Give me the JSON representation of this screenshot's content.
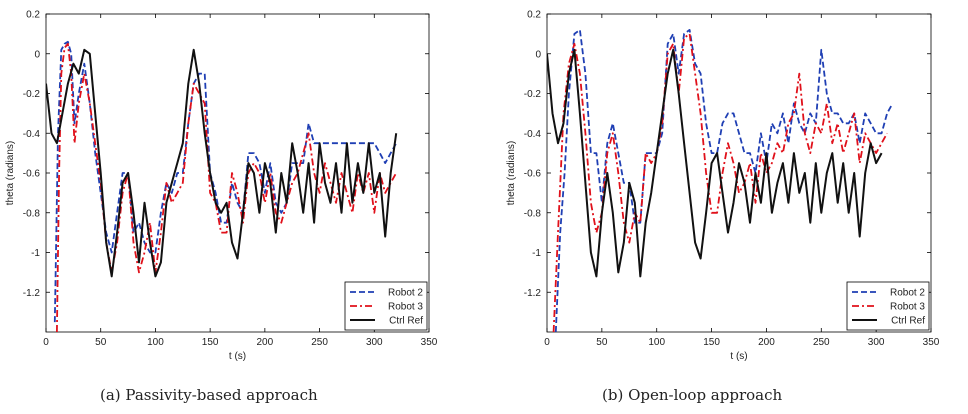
{
  "chart_data": [
    {
      "type": "line",
      "caption": "(a) Passivity-based approach",
      "xlabel": "t (s)",
      "ylabel": "theta (radians)",
      "xlim": [
        0,
        350
      ],
      "ylim": [
        -1.4,
        0.2
      ],
      "xticks": [
        0,
        50,
        100,
        150,
        200,
        250,
        300,
        350
      ],
      "yticks": [
        0.2,
        0,
        -0.2,
        -0.4,
        -0.6,
        -0.8,
        -1,
        -1.2
      ],
      "legend_position": "bottom-right",
      "series": [
        {
          "name": "Robot 2",
          "style": "dashed",
          "color": "#1f3fb4",
          "x": [
            8,
            11,
            14,
            17,
            20,
            23,
            26,
            30,
            35,
            40,
            45,
            50,
            55,
            60,
            65,
            70,
            75,
            80,
            85,
            90,
            95,
            100,
            105,
            110,
            115,
            120,
            125,
            130,
            135,
            140,
            145,
            150,
            155,
            160,
            165,
            170,
            175,
            180,
            185,
            190,
            195,
            200,
            205,
            210,
            215,
            220,
            225,
            230,
            235,
            240,
            245,
            250,
            255,
            260,
            270,
            280,
            290,
            300,
            305,
            310,
            315,
            320
          ],
          "y": [
            -1.35,
            -0.4,
            0.02,
            0.05,
            0.06,
            0.0,
            -0.35,
            -0.2,
            -0.05,
            -0.25,
            -0.5,
            -0.7,
            -0.9,
            -1.0,
            -0.8,
            -0.6,
            -0.6,
            -0.9,
            -0.85,
            -0.95,
            -1.0,
            -1.0,
            -0.8,
            -0.65,
            -0.7,
            -0.6,
            -0.6,
            -0.35,
            -0.15,
            -0.1,
            -0.1,
            -0.6,
            -0.7,
            -0.85,
            -0.85,
            -0.65,
            -0.75,
            -0.8,
            -0.5,
            -0.5,
            -0.55,
            -0.7,
            -0.55,
            -0.75,
            -0.8,
            -0.75,
            -0.55,
            -0.55,
            -0.55,
            -0.35,
            -0.45,
            -0.45,
            -0.45,
            -0.45,
            -0.45,
            -0.45,
            -0.45,
            -0.45,
            -0.5,
            -0.55,
            -0.5,
            -0.45
          ]
        },
        {
          "name": "Robot 3",
          "style": "dashdot",
          "color": "#e0101a",
          "x": [
            10,
            12,
            14,
            17,
            20,
            23,
            26,
            30,
            35,
            40,
            45,
            50,
            55,
            60,
            65,
            70,
            75,
            80,
            85,
            90,
            95,
            100,
            105,
            110,
            115,
            120,
            125,
            130,
            135,
            140,
            145,
            150,
            155,
            160,
            165,
            170,
            175,
            180,
            185,
            190,
            195,
            200,
            205,
            210,
            215,
            220,
            225,
            230,
            235,
            240,
            245,
            250,
            255,
            260,
            265,
            270,
            275,
            280,
            285,
            290,
            295,
            300,
            305,
            310,
            315,
            320
          ],
          "y": [
            -1.4,
            -0.6,
            -0.1,
            0.03,
            0.05,
            -0.1,
            -0.45,
            -0.25,
            -0.1,
            -0.25,
            -0.45,
            -0.65,
            -0.95,
            -1.1,
            -0.95,
            -0.7,
            -0.6,
            -0.95,
            -1.1,
            -1.0,
            -0.85,
            -1.1,
            -0.9,
            -0.65,
            -0.75,
            -0.7,
            -0.65,
            -0.35,
            -0.15,
            -0.2,
            -0.25,
            -0.7,
            -0.75,
            -0.9,
            -0.9,
            -0.6,
            -0.7,
            -0.85,
            -0.6,
            -0.55,
            -0.6,
            -0.75,
            -0.6,
            -0.8,
            -0.85,
            -0.75,
            -0.65,
            -0.6,
            -0.5,
            -0.4,
            -0.6,
            -0.7,
            -0.55,
            -0.65,
            -0.75,
            -0.6,
            -0.7,
            -0.8,
            -0.6,
            -0.7,
            -0.6,
            -0.8,
            -0.6,
            -0.7,
            -0.65,
            -0.6
          ]
        },
        {
          "name": "Ctrl Ref",
          "style": "solid",
          "color": "#111111",
          "x": [
            0,
            5,
            10,
            15,
            20,
            25,
            30,
            35,
            40,
            45,
            50,
            55,
            60,
            65,
            70,
            75,
            80,
            85,
            90,
            95,
            100,
            105,
            110,
            115,
            120,
            125,
            130,
            135,
            140,
            145,
            150,
            155,
            160,
            165,
            170,
            175,
            180,
            185,
            190,
            195,
            200,
            205,
            210,
            215,
            220,
            225,
            230,
            235,
            240,
            245,
            250,
            255,
            260,
            265,
            270,
            275,
            280,
            285,
            290,
            295,
            300,
            305,
            310,
            315,
            320
          ],
          "y": [
            -0.15,
            -0.4,
            -0.45,
            -0.3,
            -0.15,
            -0.05,
            -0.1,
            0.02,
            0.0,
            -0.3,
            -0.6,
            -0.95,
            -1.12,
            -0.9,
            -0.65,
            -0.6,
            -0.8,
            -1.05,
            -0.75,
            -0.95,
            -1.12,
            -1.05,
            -0.75,
            -0.65,
            -0.55,
            -0.45,
            -0.15,
            0.02,
            -0.15,
            -0.4,
            -0.6,
            -0.75,
            -0.8,
            -0.75,
            -0.95,
            -1.03,
            -0.8,
            -0.55,
            -0.6,
            -0.8,
            -0.55,
            -0.65,
            -0.9,
            -0.6,
            -0.75,
            -0.45,
            -0.6,
            -0.8,
            -0.55,
            -0.85,
            -0.45,
            -0.65,
            -0.75,
            -0.55,
            -0.8,
            -0.45,
            -0.75,
            -0.55,
            -0.7,
            -0.45,
            -0.7,
            -0.6,
            -0.92,
            -0.6,
            -0.4
          ]
        }
      ]
    },
    {
      "type": "line",
      "caption": "(b) Open-loop approach",
      "xlabel": "t (s)",
      "ylabel": "theta (radians)",
      "xlim": [
        0,
        350
      ],
      "ylim": [
        -1.4,
        0.2
      ],
      "xticks": [
        0,
        50,
        100,
        150,
        200,
        250,
        300,
        350
      ],
      "yticks": [
        0.2,
        0,
        -0.2,
        -0.4,
        -0.6,
        -0.8,
        -1,
        -1.2
      ],
      "legend_position": "bottom-right",
      "series": [
        {
          "name": "Robot 2",
          "style": "dashed",
          "color": "#1f3fb4",
          "x": [
            8,
            12,
            16,
            20,
            25,
            30,
            35,
            40,
            45,
            50,
            55,
            60,
            65,
            70,
            75,
            80,
            85,
            90,
            95,
            100,
            105,
            110,
            115,
            120,
            125,
            130,
            135,
            140,
            145,
            150,
            155,
            160,
            165,
            170,
            175,
            180,
            185,
            190,
            195,
            200,
            205,
            210,
            215,
            220,
            225,
            230,
            235,
            240,
            245,
            250,
            255,
            260,
            265,
            270,
            275,
            280,
            285,
            290,
            295,
            300,
            305,
            310,
            315
          ],
          "y": [
            -1.4,
            -0.9,
            -0.6,
            -0.2,
            0.1,
            0.12,
            -0.1,
            -0.5,
            -0.5,
            -0.75,
            -0.45,
            -0.35,
            -0.5,
            -0.65,
            -0.65,
            -0.85,
            -0.85,
            -0.5,
            -0.5,
            -0.5,
            -0.4,
            0.05,
            0.1,
            -0.1,
            0.1,
            0.12,
            -0.05,
            -0.1,
            -0.35,
            -0.5,
            -0.5,
            -0.35,
            -0.3,
            -0.3,
            -0.4,
            -0.5,
            -0.5,
            -0.6,
            -0.4,
            -0.55,
            -0.35,
            -0.4,
            -0.3,
            -0.45,
            -0.25,
            -0.35,
            -0.4,
            -0.3,
            -0.35,
            0.02,
            -0.2,
            -0.3,
            -0.3,
            -0.35,
            -0.35,
            -0.3,
            -0.45,
            -0.3,
            -0.35,
            -0.4,
            -0.4,
            -0.3,
            -0.25
          ]
        },
        {
          "name": "Robot 3",
          "style": "dashdot",
          "color": "#e0101a",
          "x": [
            6,
            10,
            15,
            20,
            25,
            30,
            35,
            40,
            45,
            50,
            55,
            60,
            65,
            70,
            75,
            80,
            85,
            90,
            95,
            100,
            105,
            110,
            115,
            120,
            125,
            130,
            135,
            140,
            145,
            150,
            155,
            160,
            165,
            170,
            175,
            180,
            185,
            190,
            195,
            200,
            205,
            210,
            215,
            220,
            225,
            230,
            235,
            240,
            245,
            250,
            255,
            260,
            265,
            270,
            275,
            280,
            285,
            290,
            295,
            300,
            305,
            310
          ],
          "y": [
            -1.4,
            -0.9,
            -0.3,
            -0.05,
            0.05,
            -0.1,
            -0.4,
            -0.75,
            -0.9,
            -0.8,
            -0.5,
            -0.4,
            -0.6,
            -0.85,
            -0.95,
            -0.8,
            -0.85,
            -0.5,
            -0.55,
            -0.5,
            -0.35,
            0.0,
            0.05,
            -0.2,
            0.08,
            0.1,
            -0.1,
            -0.3,
            -0.6,
            -0.8,
            -0.8,
            -0.6,
            -0.45,
            -0.55,
            -0.7,
            -0.65,
            -0.55,
            -0.75,
            -0.5,
            -0.6,
            -0.55,
            -0.45,
            -0.5,
            -0.35,
            -0.3,
            -0.1,
            -0.4,
            -0.5,
            -0.35,
            -0.4,
            -0.25,
            -0.45,
            -0.35,
            -0.5,
            -0.4,
            -0.3,
            -0.55,
            -0.4,
            -0.45,
            -0.5,
            -0.45,
            -0.4
          ]
        },
        {
          "name": "Ctrl Ref",
          "style": "solid",
          "color": "#111111",
          "x": [
            0,
            5,
            10,
            15,
            20,
            25,
            30,
            35,
            40,
            45,
            50,
            55,
            60,
            65,
            70,
            75,
            80,
            85,
            90,
            95,
            100,
            105,
            110,
            115,
            120,
            125,
            130,
            135,
            140,
            145,
            150,
            155,
            160,
            165,
            170,
            175,
            180,
            185,
            190,
            195,
            200,
            205,
            210,
            215,
            220,
            225,
            230,
            235,
            240,
            245,
            250,
            255,
            260,
            265,
            270,
            275,
            280,
            285,
            290,
            295,
            300,
            305
          ],
          "y": [
            0.0,
            -0.3,
            -0.45,
            -0.35,
            -0.1,
            0.02,
            -0.3,
            -0.65,
            -1.0,
            -1.12,
            -0.8,
            -0.6,
            -0.8,
            -1.1,
            -0.95,
            -0.65,
            -0.75,
            -1.12,
            -0.85,
            -0.7,
            -0.5,
            -0.3,
            -0.1,
            0.02,
            -0.2,
            -0.45,
            -0.7,
            -0.95,
            -1.03,
            -0.8,
            -0.55,
            -0.5,
            -0.7,
            -0.9,
            -0.75,
            -0.55,
            -0.65,
            -0.85,
            -0.6,
            -0.75,
            -0.5,
            -0.8,
            -0.65,
            -0.55,
            -0.75,
            -0.5,
            -0.7,
            -0.6,
            -0.85,
            -0.55,
            -0.8,
            -0.6,
            -0.5,
            -0.75,
            -0.55,
            -0.8,
            -0.6,
            -0.92,
            -0.6,
            -0.45,
            -0.55,
            -0.5
          ]
        }
      ]
    }
  ]
}
